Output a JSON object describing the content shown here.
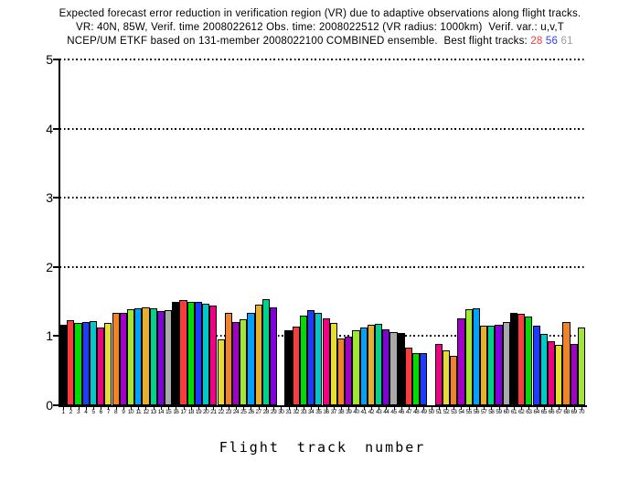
{
  "title": {
    "line1": "Expected forecast error reduction in verification region (VR) due to adaptive observations along flight tracks.",
    "line2": "VR: 40N, 85W, Verif. time 2008022612 Obs. time: 2008022512 (VR radius: 1000km)  Verif. var.: u,v,T",
    "line3_prefix": "NCEP/UM ETKF based on 131-member 2008022100 COMBINED ensemble.  Best flight tracks: ",
    "best_tracks": [
      {
        "label": "28",
        "color": "#f23c3c"
      },
      {
        "label": "56",
        "color": "#2e3cff"
      },
      {
        "label": "61",
        "color": "#9e9e9e"
      }
    ]
  },
  "chart_data": {
    "type": "bar",
    "title": "Expected forecast error reduction in VR due to adaptive observations along flight tracks",
    "xlabel": "Flight track number",
    "ylabel": "",
    "ylim": [
      0,
      5
    ],
    "yticks": [
      0,
      1,
      2,
      3,
      4,
      5
    ],
    "grid": "horizontal dotted black lines at y = 1, 2, 3, 4, 5",
    "legend": "none",
    "categories": [
      1,
      2,
      3,
      4,
      5,
      6,
      7,
      8,
      9,
      10,
      11,
      12,
      13,
      14,
      15,
      16,
      17,
      18,
      19,
      20,
      21,
      22,
      23,
      24,
      25,
      26,
      27,
      28,
      29,
      30,
      31,
      32,
      33,
      34,
      35,
      36,
      37,
      38,
      39,
      40,
      41,
      42,
      43,
      44,
      45,
      46,
      47,
      48,
      49,
      50,
      51,
      52,
      53,
      54,
      55,
      56,
      57,
      58,
      59,
      60,
      61,
      62,
      63,
      64,
      65,
      66,
      67,
      68,
      69,
      70
    ],
    "values": [
      1.17,
      1.23,
      1.19,
      1.2,
      1.22,
      1.13,
      1.19,
      1.33,
      1.34,
      1.39,
      1.4,
      1.41,
      1.4,
      1.36,
      1.38,
      1.5,
      1.52,
      1.49,
      1.49,
      1.47,
      1.44,
      0.95,
      1.34,
      1.21,
      1.24,
      1.33,
      1.46,
      1.54,
      1.41,
      0,
      1.08,
      1.14,
      1.29,
      1.37,
      1.33,
      1.26,
      1.19,
      0.97,
      0.99,
      1.08,
      1.12,
      1.16,
      1.18,
      1.1,
      1.06,
      1.04,
      0.84,
      0.76,
      0.76,
      0,
      0.88,
      0.8,
      0.71,
      1.26,
      1.39,
      1.4,
      1.15,
      1.15,
      1.16,
      1.21,
      1.34,
      1.32,
      1.28,
      1.15,
      1.03,
      0.93,
      0.87,
      1.21,
      0.89,
      1.12
    ],
    "missing_tracks": [
      30,
      50
    ],
    "palette_cycle": [
      "#000000",
      "#fa3c3c",
      "#00dc00",
      "#1e3cff",
      "#00c8c8",
      "#f00082",
      "#e6dc32",
      "#f08228",
      "#a000c8",
      "#a0e632",
      "#00a0ff",
      "#e6af2d",
      "#00d28c",
      "#8200dc",
      "#aaaaaa"
    ],
    "color_rule": "bar n is filled with palette_cycle[(n-1) mod 15], black outline"
  }
}
